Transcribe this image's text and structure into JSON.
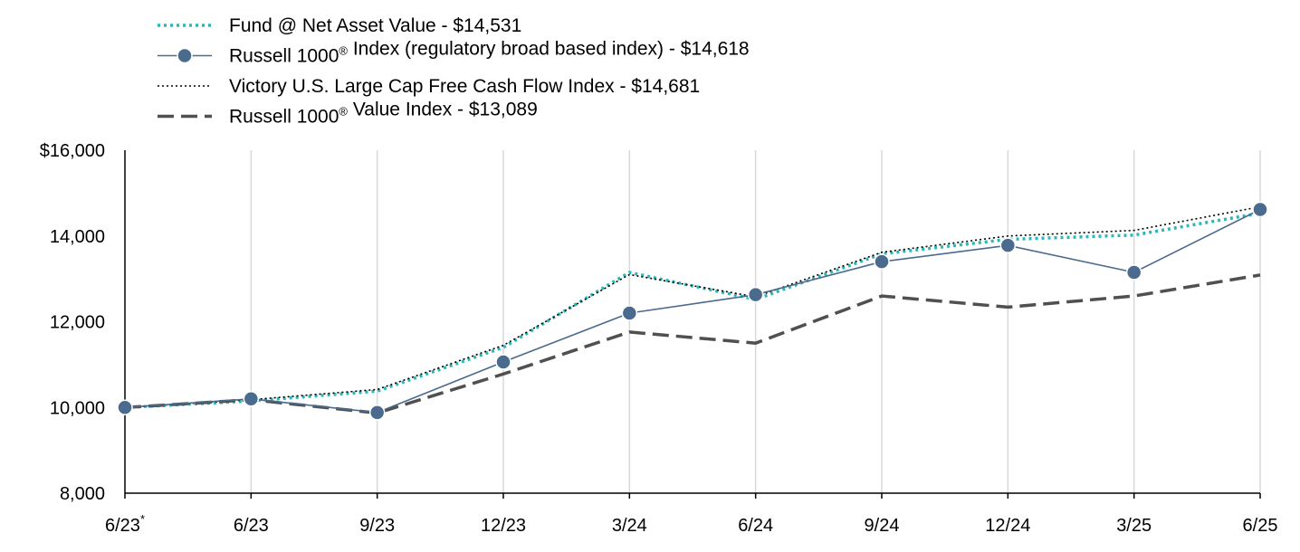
{
  "chart_data": {
    "type": "line",
    "title": "",
    "xlabel": "",
    "ylabel": "",
    "categories": [
      "6/23",
      "6/23",
      "9/23",
      "12/23",
      "3/24",
      "6/24",
      "9/24",
      "12/24",
      "3/25",
      "6/25"
    ],
    "category_superscripts": [
      "*",
      "",
      "",
      "",
      "",
      "",
      "",
      "",
      "",
      ""
    ],
    "ylim": [
      8000,
      16000
    ],
    "yticks": [
      {
        "value": 8000,
        "label": "8,000"
      },
      {
        "value": 10000,
        "label": "10,000"
      },
      {
        "value": 12000,
        "label": "12,000"
      },
      {
        "value": 14000,
        "label": "14,000"
      },
      {
        "value": 16000,
        "label": "$16,000"
      }
    ],
    "grid": "vertical",
    "legend_position": "top-left",
    "series": [
      {
        "name": "Fund @ Net Asset Value - $14,531",
        "legend_parts": [
          "Fund @ Net Asset Value - $14,531"
        ],
        "style": "dotted-thick",
        "color": "#2ab7bb",
        "values": [
          10000,
          10150,
          10380,
          11400,
          13150,
          12520,
          13580,
          13920,
          14020,
          14531
        ]
      },
      {
        "name": "Russell 1000® Index (regulatory broad based index) - $14,618",
        "legend_parts": [
          "Russell 1000",
          "®",
          " Index (regulatory broad based index) - $14,618"
        ],
        "style": "solid-markers",
        "color": "#4a6a8e",
        "values": [
          10000,
          10200,
          9880,
          11060,
          12200,
          12630,
          13400,
          13780,
          13150,
          14618
        ]
      },
      {
        "name": "Victory U.S. Large Cap Free Cash Flow Index - $14,681",
        "legend_parts": [
          "Victory U.S. Large Cap Free Cash Flow Index - $14,681"
        ],
        "style": "dotted-thin",
        "color": "#000000",
        "values": [
          10000,
          10180,
          10420,
          11450,
          13100,
          12580,
          13620,
          14000,
          14130,
          14681
        ]
      },
      {
        "name": "Russell 1000® Value Index - $13,089",
        "legend_parts": [
          "Russell 1000",
          "®",
          " Value Index - $13,089"
        ],
        "style": "dashed",
        "color": "#505050",
        "values": [
          10000,
          10180,
          9870,
          10780,
          11760,
          11500,
          12600,
          12340,
          12600,
          13089
        ]
      }
    ]
  }
}
